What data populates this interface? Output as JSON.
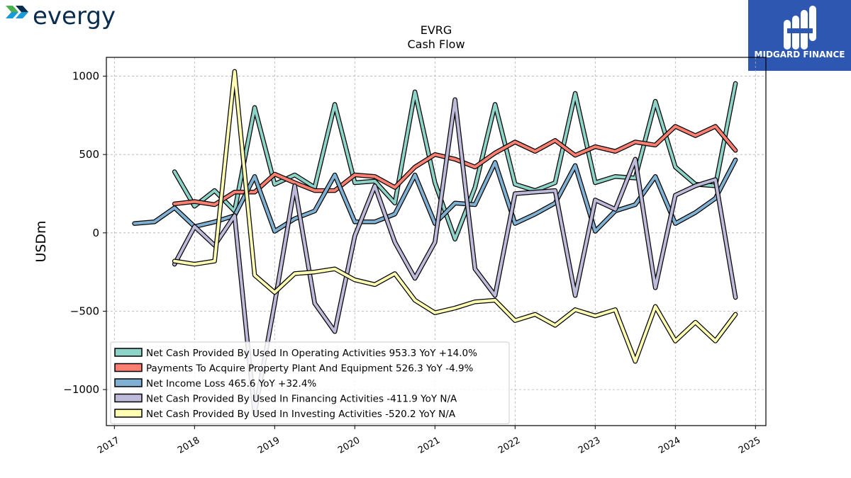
{
  "brand": {
    "company_logo_text": "evergy",
    "company_logo_colors": [
      "#4bb04f",
      "#1a9ad6",
      "#0a2d4d"
    ],
    "publisher_logo_text": "MIDGARD FINANCE",
    "publisher_bg_color": "#2d57b0"
  },
  "chart_data": {
    "type": "line",
    "title": "EVRG",
    "subtitle": "Cash Flow",
    "xlabel": "",
    "ylabel": "USDm",
    "ylim": [
      -1230,
      1120
    ],
    "xlim": [
      2016.9,
      2025.13
    ],
    "yticks": [
      1000,
      500,
      0,
      -500,
      -1000
    ],
    "ytick_labels": [
      "1000",
      "500",
      "0",
      "−500",
      "−1000"
    ],
    "xticks": [
      2017,
      2018,
      2019,
      2020,
      2021,
      2022,
      2023,
      2024,
      2025
    ],
    "xtick_labels": [
      "2017",
      "2018",
      "2019",
      "2020",
      "2021",
      "2022",
      "2023",
      "2024",
      "2025"
    ],
    "grid": true,
    "legend_placement": "lower-left",
    "series": [
      {
        "name": "Net Cash Provided By Used In Operating Activities",
        "legend_label": "Net Cash Provided By Used In Operating Activities  953.3 YoY +14.0%",
        "color": "#8dd3c7",
        "x": [
          2017.75,
          2018.0,
          2018.25,
          2018.5,
          2018.75,
          2019.0,
          2019.25,
          2019.5,
          2019.75,
          2020.0,
          2020.25,
          2020.5,
          2020.75,
          2021.0,
          2021.25,
          2021.5,
          2021.75,
          2022.0,
          2022.25,
          2022.5,
          2022.75,
          2023.0,
          2023.25,
          2023.5,
          2023.75,
          2024.0,
          2024.25,
          2024.5,
          2024.75
        ],
        "values": [
          390,
          170,
          270,
          140,
          800,
          310,
          370,
          290,
          820,
          320,
          330,
          190,
          900,
          320,
          -40,
          290,
          820,
          310,
          270,
          320,
          890,
          320,
          360,
          350,
          840,
          420,
          310,
          300,
          953.3
        ]
      },
      {
        "name": "Payments To Acquire Property Plant And Equipment",
        "legend_label": "Payments To Acquire Property Plant And Equipment  526.3 YoY -4.9%",
        "color": "#fb8072",
        "x": [
          2017.75,
          2018.0,
          2018.25,
          2018.5,
          2018.75,
          2019.0,
          2019.25,
          2019.5,
          2019.75,
          2020.0,
          2020.25,
          2020.5,
          2020.75,
          2021.0,
          2021.25,
          2021.5,
          2021.75,
          2022.0,
          2022.25,
          2022.5,
          2022.75,
          2023.0,
          2023.25,
          2023.5,
          2023.75,
          2024.0,
          2024.25,
          2024.5,
          2024.75
        ],
        "values": [
          185,
          200,
          180,
          260,
          260,
          375,
          320,
          270,
          270,
          370,
          360,
          290,
          420,
          500,
          470,
          420,
          510,
          580,
          520,
          590,
          495,
          550,
          520,
          580,
          560,
          680,
          620,
          680,
          526.3
        ]
      },
      {
        "name": "Net Income Loss",
        "legend_label": "Net Income Loss  465.6 YoY +32.4%",
        "color": "#80b1d3",
        "x": [
          2017.25,
          2017.5,
          2017.75,
          2018.0,
          2018.25,
          2018.5,
          2018.75,
          2019.0,
          2019.25,
          2019.5,
          2019.75,
          2020.0,
          2020.25,
          2020.5,
          2020.75,
          2021.0,
          2021.25,
          2021.5,
          2021.75,
          2022.0,
          2022.25,
          2022.5,
          2022.75,
          2023.0,
          2023.25,
          2023.5,
          2023.75,
          2024.0,
          2024.25,
          2024.5,
          2024.75
        ],
        "values": [
          60,
          70,
          160,
          40,
          70,
          110,
          360,
          10,
          90,
          140,
          370,
          70,
          70,
          120,
          370,
          60,
          190,
          180,
          450,
          60,
          120,
          190,
          430,
          10,
          140,
          180,
          360,
          60,
          130,
          220,
          465.6
        ]
      },
      {
        "name": "Net Cash Provided By Used In Financing Activities",
        "legend_label": "Net Cash Provided By Used In Financing Activities  -411.9 YoY N/A",
        "color": "#bebada",
        "x": [
          2017.75,
          2018.0,
          2018.25,
          2018.5,
          2018.75,
          2019.0,
          2019.25,
          2019.5,
          2019.75,
          2020.0,
          2020.25,
          2020.5,
          2020.75,
          2021.0,
          2021.25,
          2021.5,
          2021.75,
          2022.0,
          2022.25,
          2022.5,
          2022.75,
          2023.0,
          2023.25,
          2023.5,
          2023.75,
          2024.0,
          2024.25,
          2024.5,
          2024.75
        ],
        "values": [
          -200,
          40,
          -80,
          110,
          -1150,
          -450,
          300,
          -450,
          -630,
          -20,
          300,
          -60,
          -290,
          -60,
          850,
          -230,
          -400,
          250,
          260,
          270,
          -400,
          210,
          150,
          470,
          -350,
          240,
          300,
          340,
          -411.9
        ]
      },
      {
        "name": "Net Cash Provided By Used In Investing Activities",
        "legend_label": "Net Cash Provided By Used In Investing Activities  -520.2 YoY N/A",
        "color": "#ffffb3",
        "x": [
          2017.75,
          2018.0,
          2018.25,
          2018.5,
          2018.75,
          2019.0,
          2019.25,
          2019.5,
          2019.75,
          2020.0,
          2020.25,
          2020.5,
          2020.75,
          2021.0,
          2021.25,
          2021.5,
          2021.75,
          2022.0,
          2022.25,
          2022.5,
          2022.75,
          2023.0,
          2023.25,
          2023.5,
          2023.75,
          2024.0,
          2024.25,
          2024.5,
          2024.75
        ],
        "values": [
          -180,
          -200,
          -180,
          1030,
          -270,
          -380,
          -260,
          -250,
          -230,
          -300,
          -330,
          -260,
          -430,
          -510,
          -480,
          -440,
          -430,
          -560,
          -520,
          -590,
          -490,
          -530,
          -490,
          -820,
          -470,
          -690,
          -570,
          -690,
          -520.2
        ]
      }
    ]
  }
}
